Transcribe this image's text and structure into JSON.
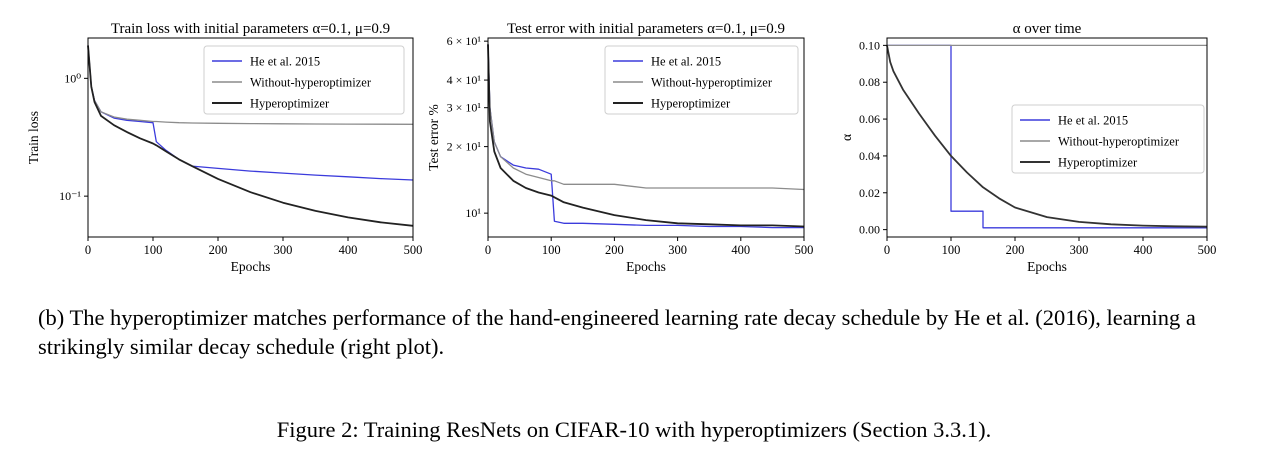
{
  "chart_data": [
    {
      "type": "line",
      "title": "Train loss with initial parameters α=0.1, μ=0.9",
      "xlabel": "Epochs",
      "ylabel": "Train loss",
      "xlim": [
        0,
        500
      ],
      "ylim": [
        0.045,
        2.2
      ],
      "yscale": "log",
      "xticks": [
        0,
        100,
        200,
        300,
        400,
        500
      ],
      "yticks": [
        {
          "value": 1,
          "label": "10⁰"
        },
        {
          "value": 0.1,
          "label": "10⁻¹"
        }
      ],
      "grid": false,
      "legend": "top-right",
      "x": [
        0,
        5,
        10,
        20,
        40,
        60,
        80,
        100,
        105,
        120,
        140,
        160,
        200,
        250,
        300,
        350,
        400,
        450,
        500
      ],
      "series": [
        {
          "name": "He et al. 2015",
          "color": "#3b3bdc",
          "values": [
            1.9,
            0.85,
            0.65,
            0.52,
            0.46,
            0.44,
            0.43,
            0.42,
            0.29,
            0.245,
            0.205,
            0.18,
            0.172,
            0.163,
            0.157,
            0.151,
            0.146,
            0.141,
            0.137
          ]
        },
        {
          "name": "Without-hyperoptimizer",
          "color": "#8c8c8c",
          "values": [
            1.9,
            0.85,
            0.65,
            0.52,
            0.47,
            0.45,
            0.44,
            0.43,
            0.43,
            0.425,
            0.42,
            0.418,
            0.415,
            0.413,
            0.411,
            0.41,
            0.409,
            0.408,
            0.407
          ]
        },
        {
          "name": "Hyperoptimizer",
          "color": "#222222",
          "values": [
            1.9,
            0.85,
            0.63,
            0.48,
            0.4,
            0.35,
            0.31,
            0.28,
            0.27,
            0.24,
            0.205,
            0.18,
            0.14,
            0.108,
            0.088,
            0.075,
            0.066,
            0.06,
            0.056
          ]
        }
      ]
    },
    {
      "type": "line",
      "title": "Test error with initial parameters α=0.1, μ=0.9",
      "xlabel": "Epochs",
      "ylabel": "Test error %",
      "xlim": [
        0,
        500
      ],
      "ylim": [
        7.8,
        62
      ],
      "yscale": "log",
      "xticks": [
        0,
        100,
        200,
        300,
        400,
        500
      ],
      "yticks": [
        {
          "value": 10,
          "label": "10¹"
        },
        {
          "value": 20,
          "label": "2 × 10¹"
        },
        {
          "value": 30,
          "label": "3 × 10¹"
        },
        {
          "value": 40,
          "label": "4 × 10¹"
        },
        {
          "value": 60,
          "label": "6 × 10¹"
        }
      ],
      "grid": false,
      "legend": "top-right",
      "x": [
        0,
        3,
        10,
        20,
        40,
        60,
        80,
        100,
        105,
        120,
        150,
        200,
        250,
        300,
        350,
        400,
        450,
        500
      ],
      "series": [
        {
          "name": "He et al. 2015",
          "color": "#3b3bdc",
          "values": [
            58,
            30,
            21,
            18,
            16.5,
            16,
            15.8,
            15,
            9.2,
            9.0,
            9.0,
            8.9,
            8.8,
            8.8,
            8.7,
            8.7,
            8.6,
            8.6
          ]
        },
        {
          "name": "Without-hyperoptimizer",
          "color": "#8c8c8c",
          "values": [
            58,
            30,
            21,
            18,
            16,
            15,
            14.5,
            14,
            14,
            13.5,
            13.5,
            13.5,
            13,
            13,
            13,
            13,
            13,
            12.8
          ]
        },
        {
          "name": "Hyperoptimizer",
          "color": "#222222",
          "values": [
            58,
            26,
            19,
            16,
            14,
            13,
            12.4,
            12,
            11.8,
            11.2,
            10.6,
            9.8,
            9.3,
            9.0,
            8.9,
            8.8,
            8.8,
            8.7
          ]
        }
      ]
    },
    {
      "type": "line",
      "title": "α over time",
      "xlabel": "Epochs",
      "ylabel": "α",
      "xlim": [
        0,
        500
      ],
      "ylim": [
        -0.004,
        0.104
      ],
      "xticks": [
        0,
        100,
        200,
        300,
        400,
        500
      ],
      "yticks": [
        0.0,
        0.02,
        0.04,
        0.06,
        0.08,
        0.1
      ],
      "grid": false,
      "legend": "center-right",
      "x": [
        0,
        5,
        10,
        25,
        50,
        75,
        100,
        125,
        150,
        175,
        200,
        250,
        300,
        350,
        400,
        450,
        500
      ],
      "series": [
        {
          "name": "He et al. 2015",
          "color": "#3b3bdc",
          "step": true,
          "x": [
            0,
            100,
            100,
            150,
            150,
            500
          ],
          "values": [
            0.1,
            0.1,
            0.01,
            0.01,
            0.001,
            0.001
          ]
        },
        {
          "name": "Without-hyperoptimizer",
          "color": "#8c8c8c",
          "x": [
            0,
            500
          ],
          "values": [
            0.1,
            0.1
          ]
        },
        {
          "name": "Hyperoptimizer",
          "color": "#333333",
          "values": [
            0.1,
            0.091,
            0.086,
            0.076,
            0.063,
            0.051,
            0.04,
            0.031,
            0.023,
            0.017,
            0.012,
            0.0068,
            0.0042,
            0.0029,
            0.0022,
            0.0018,
            0.0016
          ]
        }
      ]
    }
  ],
  "caption_b": "(b) The hyperoptimizer matches performance of the hand-engineered learning rate decay schedule by He et al. (2016), learning a strikingly similar decay schedule (right plot).",
  "figure_caption": "Figure 2: Training ResNets on CIFAR-10 with hyperoptimizers (Section 3.3.1)."
}
